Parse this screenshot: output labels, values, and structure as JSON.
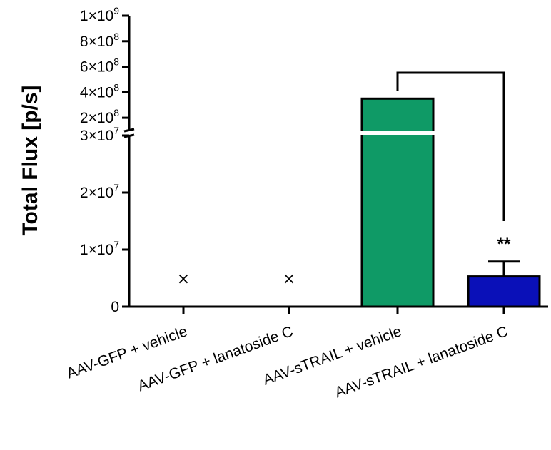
{
  "chart_data": {
    "type": "bar",
    "ylabel": "Total Flux [p/s]",
    "categories": [
      "AAV-GFP + vehicle",
      "AAV-GFP + lanatoside C",
      "AAV-sTRAIL + vehicle",
      "AAV-sTRAIL + lanatoside C"
    ],
    "values": [
      null,
      null,
      350000000,
      5300000
    ],
    "error_upper": [
      null,
      null,
      null,
      7900000
    ],
    "missing_marker": "×",
    "bar_colors": [
      "#000000",
      "#000000",
      "#0f9a66",
      "#0a10b8"
    ],
    "y_axis": {
      "broken": true,
      "lower_segment": {
        "range": [
          0,
          30000000
        ],
        "ticks": [
          {
            "value": 0,
            "label": "0",
            "exp": ""
          },
          {
            "value": 10000000,
            "label": "1×10",
            "exp": "7"
          },
          {
            "value": 20000000,
            "label": "2×10",
            "exp": "7"
          },
          {
            "value": 30000000,
            "label": "3×10",
            "exp": "7"
          }
        ]
      },
      "upper_segment": {
        "range": [
          100000000,
          1000000000
        ],
        "ticks": [
          {
            "value": 200000000,
            "label": "2×10",
            "exp": "8"
          },
          {
            "value": 400000000,
            "label": "4×10",
            "exp": "8"
          },
          {
            "value": 600000000,
            "label": "6×10",
            "exp": "8"
          },
          {
            "value": 800000000,
            "label": "8×10",
            "exp": "8"
          },
          {
            "value": 1000000000,
            "label": "1×10",
            "exp": "9"
          }
        ]
      }
    },
    "annotations": [
      {
        "text": "**",
        "between": [
          2,
          3
        ],
        "bracket": true
      }
    ]
  }
}
